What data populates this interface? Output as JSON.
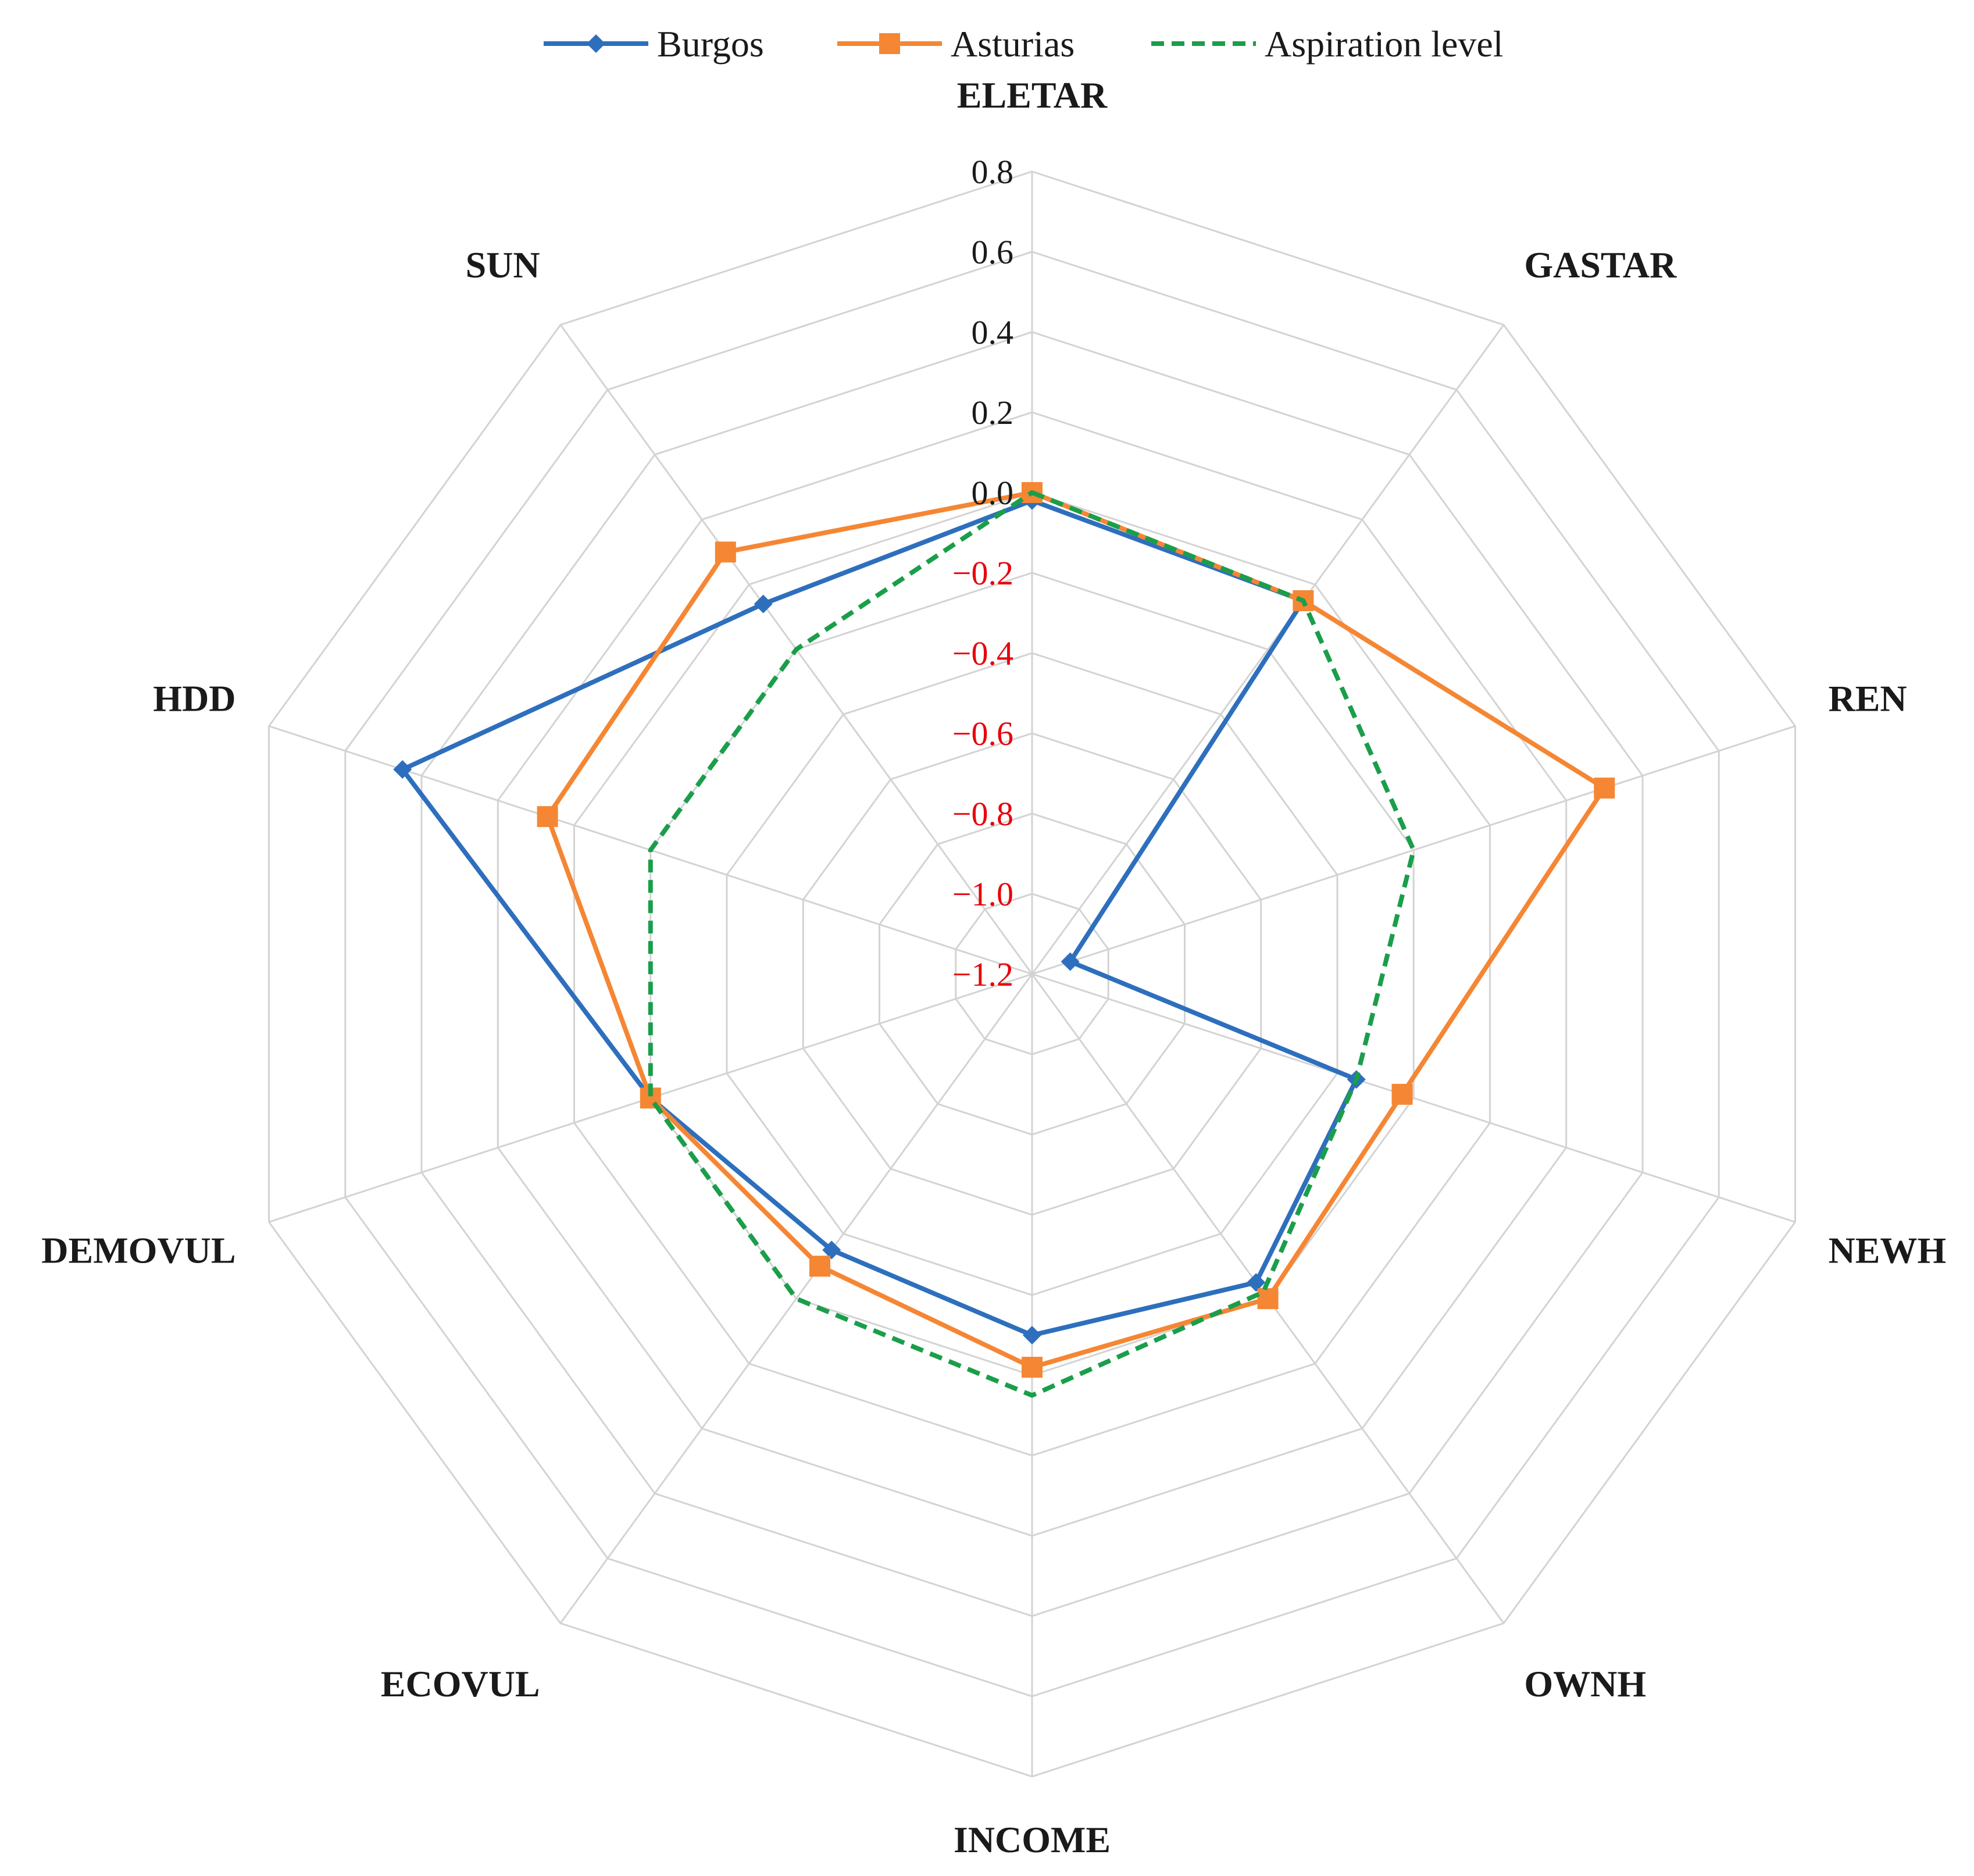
{
  "chart_data": {
    "type": "radar",
    "title": "",
    "categories": [
      "ELETAR",
      "GASTAR",
      "REN",
      "NEWH",
      "OWNH",
      "INCOME",
      "ECOVUL",
      "DEMOVUL",
      "HDD",
      "SUN"
    ],
    "radial_axis": {
      "range": [
        -1.2,
        0.8
      ],
      "step": 0.2,
      "tick_labels": [
        "−1.2",
        "−1.0",
        "−0.8",
        "−0.6",
        "−0.4",
        "−0.2",
        "0.0",
        "0.2",
        "0.4",
        "0.6",
        "0.8"
      ],
      "tick_values": [
        -1.2,
        -1.0,
        -0.8,
        -0.6,
        -0.4,
        -0.2,
        0.0,
        0.2,
        0.4,
        0.6,
        0.8
      ],
      "negative_tick_color": "#e8000b",
      "positive_tick_color": "#1a1a1a"
    },
    "grid": true,
    "legend_position": "top-center",
    "series": [
      {
        "name": "Burgos",
        "color": "#2e6fbd",
        "marker": "diamond",
        "dash": "solid",
        "values": [
          -0.02,
          -0.05,
          -1.1,
          -0.35,
          -0.25,
          -0.3,
          -0.35,
          -0.2,
          0.45,
          -0.06
        ]
      },
      {
        "name": "Asturias",
        "color": "#f58634",
        "marker": "square",
        "dash": "solid",
        "values": [
          0.0,
          -0.05,
          0.3,
          -0.23,
          -0.2,
          -0.22,
          -0.3,
          -0.2,
          0.07,
          0.1
        ]
      },
      {
        "name": "Aspiration level",
        "color": "#1a9e4a",
        "marker": "none",
        "dash": "dashed",
        "values": [
          0.0,
          -0.05,
          -0.2,
          -0.35,
          -0.22,
          -0.15,
          -0.2,
          -0.2,
          -0.2,
          -0.2
        ]
      }
    ]
  }
}
